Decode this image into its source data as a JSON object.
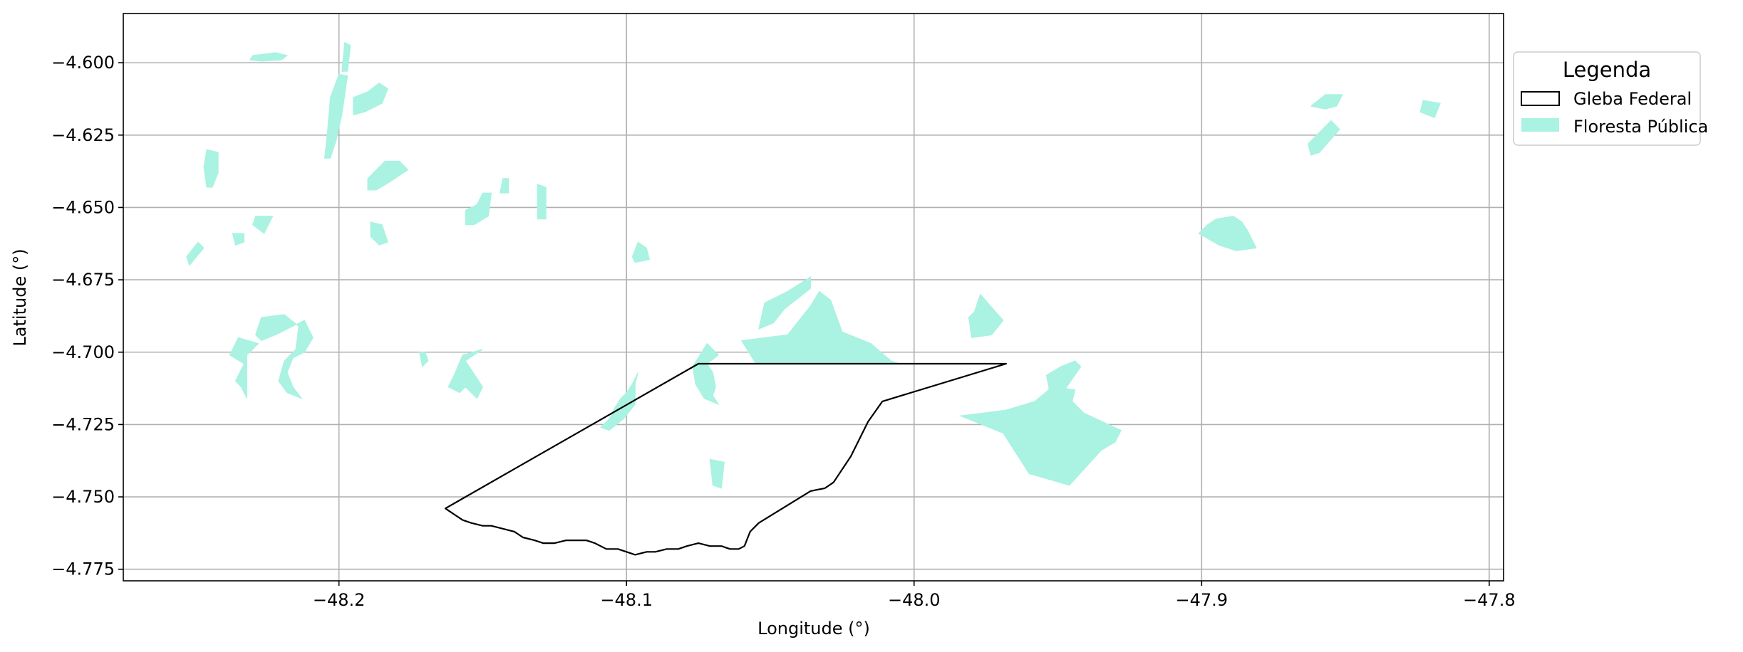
{
  "colors": {
    "forest_fill": "#aaf2e1",
    "gleba_stroke": "#000000",
    "grid": "#b0b0b0",
    "legend_border": "#cccccc",
    "background": "#ffffff"
  },
  "chart_data": {
    "type": "map",
    "xlabel": "Longitude (°)",
    "ylabel": "Latitude (°)",
    "xlim": [
      -48.275,
      -47.795
    ],
    "ylim": [
      -4.779,
      -4.583
    ],
    "xticks": [
      -48.2,
      -48.1,
      -48.0,
      -47.9,
      -47.8
    ],
    "xtick_labels": [
      "−48.2",
      "−48.1",
      "−48.0",
      "−47.9",
      "−47.8"
    ],
    "yticks": [
      -4.6,
      -4.625,
      -4.65,
      -4.675,
      -4.7,
      -4.725,
      -4.75,
      -4.775
    ],
    "ytick_labels": [
      "−4.600",
      "−4.625",
      "−4.650",
      "−4.675",
      "−4.700",
      "−4.725",
      "−4.750",
      "−4.775"
    ],
    "grid": true,
    "legend": {
      "title": "Legenda",
      "placement": "outside-right-top",
      "entries": [
        {
          "label": "Gleba Federal",
          "style": "outline",
          "color": "#000000"
        },
        {
          "label": "Floresta Pública",
          "style": "fill",
          "color": "#aaf2e1"
        }
      ]
    },
    "gleba_federal": {
      "name": "Gleba Federal",
      "coordinates": [
        [
          -48.075,
          -4.704
        ],
        [
          -47.968,
          -4.704
        ],
        [
          -48.011,
          -4.717
        ],
        [
          -48.016,
          -4.724
        ],
        [
          -48.022,
          -4.736
        ],
        [
          -48.028,
          -4.745
        ],
        [
          -48.031,
          -4.747
        ],
        [
          -48.036,
          -4.748
        ],
        [
          -48.054,
          -4.759
        ],
        [
          -48.057,
          -4.762
        ],
        [
          -48.059,
          -4.767
        ],
        [
          -48.061,
          -4.768
        ],
        [
          -48.064,
          -4.768
        ],
        [
          -48.067,
          -4.767
        ],
        [
          -48.071,
          -4.767
        ],
        [
          -48.075,
          -4.766
        ],
        [
          -48.079,
          -4.767
        ],
        [
          -48.082,
          -4.768
        ],
        [
          -48.086,
          -4.768
        ],
        [
          -48.09,
          -4.769
        ],
        [
          -48.093,
          -4.769
        ],
        [
          -48.097,
          -4.77
        ],
        [
          -48.1,
          -4.769
        ],
        [
          -48.103,
          -4.768
        ],
        [
          -48.107,
          -4.768
        ],
        [
          -48.111,
          -4.766
        ],
        [
          -48.114,
          -4.765
        ],
        [
          -48.118,
          -4.765
        ],
        [
          -48.121,
          -4.765
        ],
        [
          -48.125,
          -4.766
        ],
        [
          -48.129,
          -4.766
        ],
        [
          -48.132,
          -4.765
        ],
        [
          -48.136,
          -4.764
        ],
        [
          -48.139,
          -4.762
        ],
        [
          -48.143,
          -4.761
        ],
        [
          -48.147,
          -4.76
        ],
        [
          -48.15,
          -4.76
        ],
        [
          -48.154,
          -4.759
        ],
        [
          -48.157,
          -4.758
        ],
        [
          -48.16,
          -4.756
        ],
        [
          -48.163,
          -4.754
        ],
        [
          -48.075,
          -4.704
        ]
      ]
    },
    "floresta_publica": [
      {
        "name": "fp-01",
        "coordinates": [
          [
            -48.23,
            -4.5975
          ],
          [
            -48.222,
            -4.5965
          ],
          [
            -48.218,
            -4.5975
          ],
          [
            -48.22,
            -4.599
          ],
          [
            -48.227,
            -4.5995
          ],
          [
            -48.231,
            -4.599
          ]
        ]
      },
      {
        "name": "fp-02",
        "coordinates": [
          [
            -48.198,
            -4.593
          ],
          [
            -48.196,
            -4.594
          ],
          [
            -48.197,
            -4.603
          ],
          [
            -48.199,
            -4.603
          ]
        ]
      },
      {
        "name": "fp-03",
        "coordinates": [
          [
            -48.2,
            -4.604
          ],
          [
            -48.197,
            -4.6045
          ],
          [
            -48.199,
            -4.618
          ],
          [
            -48.201,
            -4.627
          ],
          [
            -48.203,
            -4.633
          ],
          [
            -48.205,
            -4.633
          ],
          [
            -48.204,
            -4.624
          ],
          [
            -48.203,
            -4.612
          ]
        ]
      },
      {
        "name": "fp-04",
        "coordinates": [
          [
            -48.195,
            -4.612
          ],
          [
            -48.19,
            -4.61
          ],
          [
            -48.186,
            -4.607
          ],
          [
            -48.183,
            -4.609
          ],
          [
            -48.185,
            -4.614
          ],
          [
            -48.191,
            -4.617
          ],
          [
            -48.195,
            -4.618
          ]
        ]
      },
      {
        "name": "fp-05",
        "coordinates": [
          [
            -48.246,
            -4.63
          ],
          [
            -48.242,
            -4.631
          ],
          [
            -48.242,
            -4.638
          ],
          [
            -48.244,
            -4.643
          ],
          [
            -48.246,
            -4.643
          ],
          [
            -48.247,
            -4.636
          ]
        ]
      },
      {
        "name": "fp-06",
        "coordinates": [
          [
            -48.184,
            -4.634
          ],
          [
            -48.179,
            -4.634
          ],
          [
            -48.176,
            -4.637
          ],
          [
            -48.182,
            -4.641
          ],
          [
            -48.187,
            -4.644
          ],
          [
            -48.19,
            -4.644
          ],
          [
            -48.19,
            -4.64
          ]
        ]
      },
      {
        "name": "fp-07",
        "coordinates": [
          [
            -48.229,
            -4.653
          ],
          [
            -48.223,
            -4.653
          ],
          [
            -48.226,
            -4.659
          ],
          [
            -48.23,
            -4.656
          ]
        ]
      },
      {
        "name": "fp-08",
        "coordinates": [
          [
            -48.237,
            -4.659
          ],
          [
            -48.233,
            -4.659
          ],
          [
            -48.233,
            -4.662
          ],
          [
            -48.236,
            -4.663
          ]
        ]
      },
      {
        "name": "fp-09",
        "coordinates": [
          [
            -48.253,
            -4.667
          ],
          [
            -48.249,
            -4.662
          ],
          [
            -48.247,
            -4.664
          ],
          [
            -48.252,
            -4.67
          ]
        ]
      },
      {
        "name": "fp-10",
        "coordinates": [
          [
            -48.189,
            -4.655
          ],
          [
            -48.185,
            -4.656
          ],
          [
            -48.183,
            -4.662
          ],
          [
            -48.186,
            -4.663
          ],
          [
            -48.189,
            -4.66
          ]
        ]
      },
      {
        "name": "fp-11",
        "coordinates": [
          [
            -48.15,
            -4.645
          ],
          [
            -48.147,
            -4.645
          ],
          [
            -48.148,
            -4.653
          ],
          [
            -48.153,
            -4.656
          ],
          [
            -48.156,
            -4.656
          ],
          [
            -48.156,
            -4.651
          ],
          [
            -48.152,
            -4.649
          ]
        ]
      },
      {
        "name": "fp-12",
        "coordinates": [
          [
            -48.143,
            -4.64
          ],
          [
            -48.141,
            -4.64
          ],
          [
            -48.141,
            -4.645
          ],
          [
            -48.144,
            -4.645
          ]
        ]
      },
      {
        "name": "fp-13",
        "coordinates": [
          [
            -48.131,
            -4.642
          ],
          [
            -48.128,
            -4.643
          ],
          [
            -48.128,
            -4.654
          ],
          [
            -48.131,
            -4.654
          ]
        ]
      },
      {
        "name": "fp-14",
        "coordinates": [
          [
            -48.096,
            -4.662
          ],
          [
            -48.093,
            -4.664
          ],
          [
            -48.092,
            -4.668
          ],
          [
            -48.097,
            -4.669
          ],
          [
            -48.098,
            -4.667
          ]
        ]
      },
      {
        "name": "fp-15",
        "coordinates": [
          [
            -48.227,
            -4.688
          ],
          [
            -48.219,
            -4.687
          ],
          [
            -48.214,
            -4.691
          ],
          [
            -48.215,
            -4.699
          ],
          [
            -48.219,
            -4.703
          ],
          [
            -48.221,
            -4.71
          ],
          [
            -48.218,
            -4.714
          ],
          [
            -48.213,
            -4.716
          ],
          [
            -48.216,
            -4.712
          ],
          [
            -48.218,
            -4.707
          ],
          [
            -48.216,
            -4.702
          ],
          [
            -48.212,
            -4.7
          ],
          [
            -48.209,
            -4.695
          ],
          [
            -48.212,
            -4.689
          ],
          [
            -48.216,
            -4.691
          ],
          [
            -48.222,
            -4.694
          ],
          [
            -48.227,
            -4.696
          ],
          [
            -48.229,
            -4.694
          ]
        ]
      },
      {
        "name": "fp-16",
        "coordinates": [
          [
            -48.232,
            -4.701
          ],
          [
            -48.228,
            -4.697
          ],
          [
            -48.235,
            -4.695
          ],
          [
            -48.238,
            -4.701
          ],
          [
            -48.233,
            -4.704
          ],
          [
            -48.236,
            -4.71
          ],
          [
            -48.234,
            -4.712
          ],
          [
            -48.232,
            -4.716
          ]
        ]
      },
      {
        "name": "fp-17",
        "coordinates": [
          [
            -48.15,
            -4.699
          ],
          [
            -48.157,
            -4.701
          ],
          [
            -48.16,
            -4.708
          ],
          [
            -48.162,
            -4.712
          ],
          [
            -48.158,
            -4.714
          ],
          [
            -48.156,
            -4.712
          ],
          [
            -48.153,
            -4.715
          ],
          [
            -48.152,
            -4.716
          ],
          [
            -48.15,
            -4.712
          ],
          [
            -48.154,
            -4.706
          ],
          [
            -48.156,
            -4.703
          ]
        ]
      },
      {
        "name": "fp-18",
        "coordinates": [
          [
            -48.072,
            -4.697
          ],
          [
            -48.068,
            -4.701
          ],
          [
            -48.072,
            -4.704
          ],
          [
            -48.07,
            -4.707
          ],
          [
            -48.069,
            -4.712
          ],
          [
            -48.07,
            -4.715
          ],
          [
            -48.068,
            -4.718
          ],
          [
            -48.073,
            -4.716
          ],
          [
            -48.076,
            -4.711
          ],
          [
            -48.077,
            -4.705
          ]
        ]
      },
      {
        "name": "fp-19",
        "coordinates": [
          [
            -48.06,
            -4.696
          ],
          [
            -48.044,
            -4.694
          ],
          [
            -48.036,
            -4.684
          ],
          [
            -48.033,
            -4.679
          ],
          [
            -48.029,
            -4.682
          ],
          [
            -48.025,
            -4.693
          ],
          [
            -48.015,
            -4.697
          ],
          [
            -48.008,
            -4.703
          ],
          [
            -48.005,
            -4.704
          ],
          [
            -48.055,
            -4.704
          ]
        ]
      },
      {
        "name": "fp-20",
        "coordinates": [
          [
            -48.052,
            -4.683
          ],
          [
            -48.044,
            -4.679
          ],
          [
            -48.036,
            -4.674
          ],
          [
            -48.036,
            -4.678
          ],
          [
            -48.045,
            -4.685
          ],
          [
            -48.049,
            -4.69
          ],
          [
            -48.054,
            -4.692
          ]
        ]
      },
      {
        "name": "fp-21",
        "coordinates": [
          [
            -48.096,
            -4.707
          ],
          [
            -48.098,
            -4.711
          ],
          [
            -48.1,
            -4.714
          ],
          [
            -48.102,
            -4.716
          ],
          [
            -48.104,
            -4.719
          ],
          [
            -48.106,
            -4.723
          ],
          [
            -48.109,
            -4.726
          ],
          [
            -48.106,
            -4.727
          ],
          [
            -48.101,
            -4.723
          ],
          [
            -48.097,
            -4.718
          ],
          [
            -48.097,
            -4.711
          ]
        ]
      },
      {
        "name": "fp-22",
        "coordinates": [
          [
            -47.977,
            -4.68
          ],
          [
            -47.969,
            -4.689
          ],
          [
            -47.973,
            -4.694
          ],
          [
            -47.98,
            -4.695
          ],
          [
            -47.981,
            -4.688
          ],
          [
            -47.979,
            -4.686
          ]
        ]
      },
      {
        "name": "fp-23",
        "coordinates": [
          [
            -47.984,
            -4.722
          ],
          [
            -47.969,
            -4.728
          ],
          [
            -47.96,
            -4.742
          ],
          [
            -47.946,
            -4.746
          ],
          [
            -47.935,
            -4.734
          ],
          [
            -47.93,
            -4.731
          ],
          [
            -47.928,
            -4.727
          ],
          [
            -47.941,
            -4.721
          ],
          [
            -47.945,
            -4.717
          ],
          [
            -47.944,
            -4.713
          ],
          [
            -47.952,
            -4.712
          ],
          [
            -47.958,
            -4.717
          ],
          [
            -47.968,
            -4.72
          ]
        ]
      },
      {
        "name": "fp-24",
        "coordinates": [
          [
            -48.071,
            -4.737
          ],
          [
            -48.066,
            -4.738
          ],
          [
            -48.067,
            -4.747
          ],
          [
            -48.07,
            -4.746
          ]
        ]
      },
      {
        "name": "fp-25",
        "coordinates": [
          [
            -47.944,
            -4.703
          ],
          [
            -47.942,
            -4.705
          ],
          [
            -47.949,
            -4.715
          ],
          [
            -47.953,
            -4.713
          ],
          [
            -47.954,
            -4.708
          ],
          [
            -47.949,
            -4.705
          ]
        ]
      },
      {
        "name": "fp-26",
        "coordinates": [
          [
            -47.901,
            -4.659
          ],
          [
            -47.894,
            -4.663
          ],
          [
            -47.888,
            -4.665
          ],
          [
            -47.881,
            -4.664
          ],
          [
            -47.884,
            -4.658
          ],
          [
            -47.886,
            -4.655
          ],
          [
            -47.889,
            -4.653
          ],
          [
            -47.895,
            -4.654
          ],
          [
            -47.898,
            -4.656
          ]
        ]
      },
      {
        "name": "fp-27",
        "coordinates": [
          [
            -47.862,
            -4.632
          ],
          [
            -47.859,
            -4.631
          ],
          [
            -47.852,
            -4.623
          ],
          [
            -47.855,
            -4.62
          ],
          [
            -47.863,
            -4.628
          ]
        ]
      },
      {
        "name": "fp-28",
        "coordinates": [
          [
            -47.857,
            -4.611
          ],
          [
            -47.851,
            -4.611
          ],
          [
            -47.853,
            -4.615
          ],
          [
            -47.857,
            -4.616
          ],
          [
            -47.862,
            -4.615
          ]
        ]
      },
      {
        "name": "fp-29",
        "coordinates": [
          [
            -47.823,
            -4.613
          ],
          [
            -47.817,
            -4.614
          ],
          [
            -47.819,
            -4.619
          ],
          [
            -47.824,
            -4.617
          ]
        ]
      },
      {
        "name": "fp-30",
        "coordinates": [
          [
            -48.17,
            -4.7
          ],
          [
            -48.169,
            -4.703
          ],
          [
            -48.171,
            -4.705
          ],
          [
            -48.172,
            -4.7
          ]
        ]
      }
    ]
  }
}
